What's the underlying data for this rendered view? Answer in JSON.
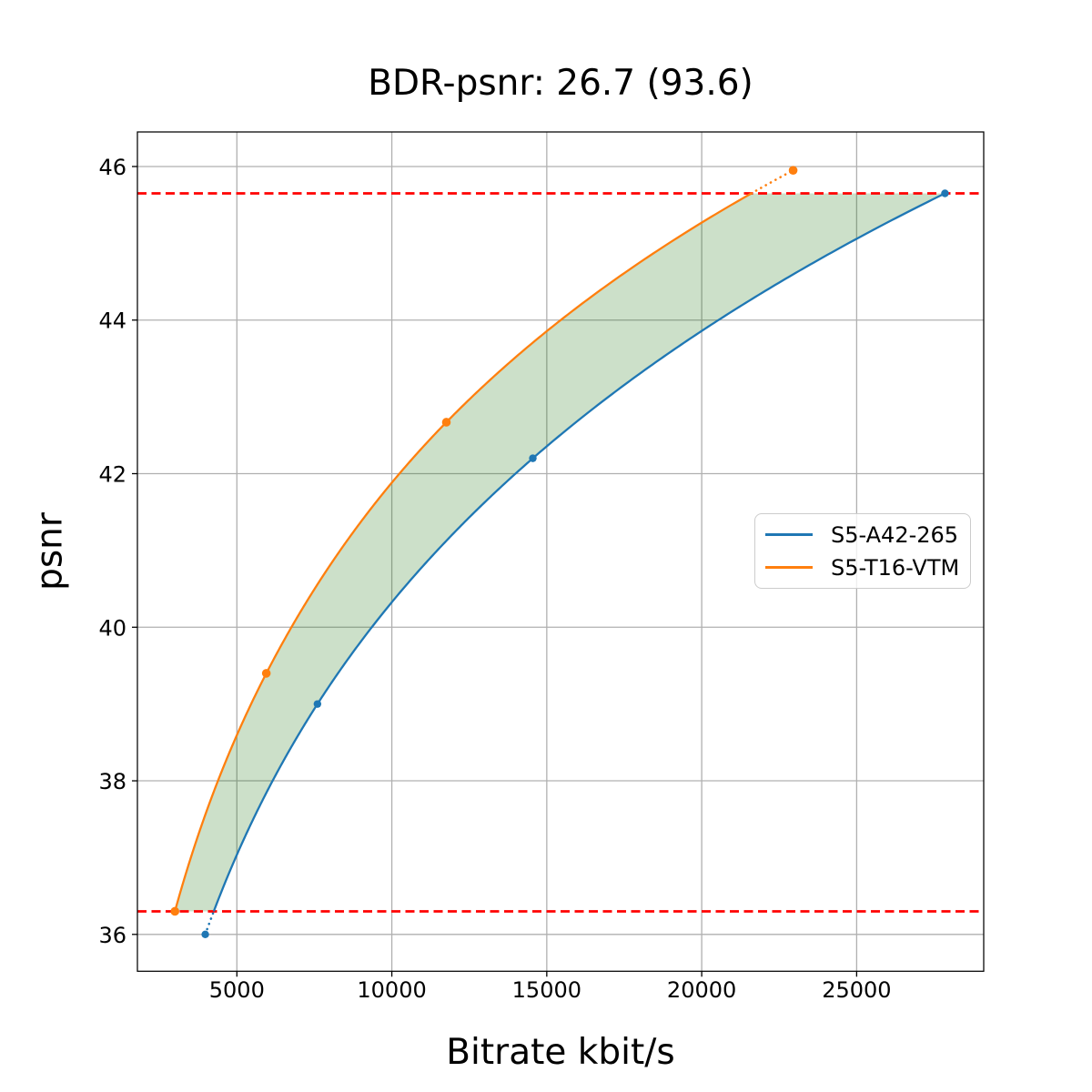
{
  "title": "BDR-psnr: 26.7 (93.6)",
  "chart_data": {
    "type": "line",
    "title": "BDR-psnr: 26.7 (93.6)",
    "xlabel": "Bitrate kbit/s",
    "ylabel": "psnr",
    "xlim": [
      1790,
      29100
    ],
    "ylim": [
      35.52,
      46.45
    ],
    "xticks": [
      5000,
      10000,
      15000,
      20000,
      25000
    ],
    "yticks": [
      36,
      38,
      40,
      42,
      44,
      46
    ],
    "grid": true,
    "grid_color": "#b0b0b0",
    "legend_position": "center right",
    "series": [
      {
        "name": "S5-A42-265",
        "color": "#1f77b4",
        "points": [
          [
            3980,
            36.0
          ],
          [
            7600,
            39.0
          ],
          [
            14550,
            42.2
          ],
          [
            27850,
            45.65
          ]
        ]
      },
      {
        "name": "S5-T16-VTM",
        "color": "#ff7f0e",
        "points": [
          [
            3000,
            36.3
          ],
          [
            5950,
            39.4
          ],
          [
            11760,
            42.67
          ],
          [
            22950,
            45.95
          ]
        ]
      }
    ],
    "hlines": {
      "color": "#ff0000",
      "lower": 36.3,
      "upper": 45.65
    },
    "fill_color": "#0f6e00",
    "fill_alpha": 0.21
  }
}
